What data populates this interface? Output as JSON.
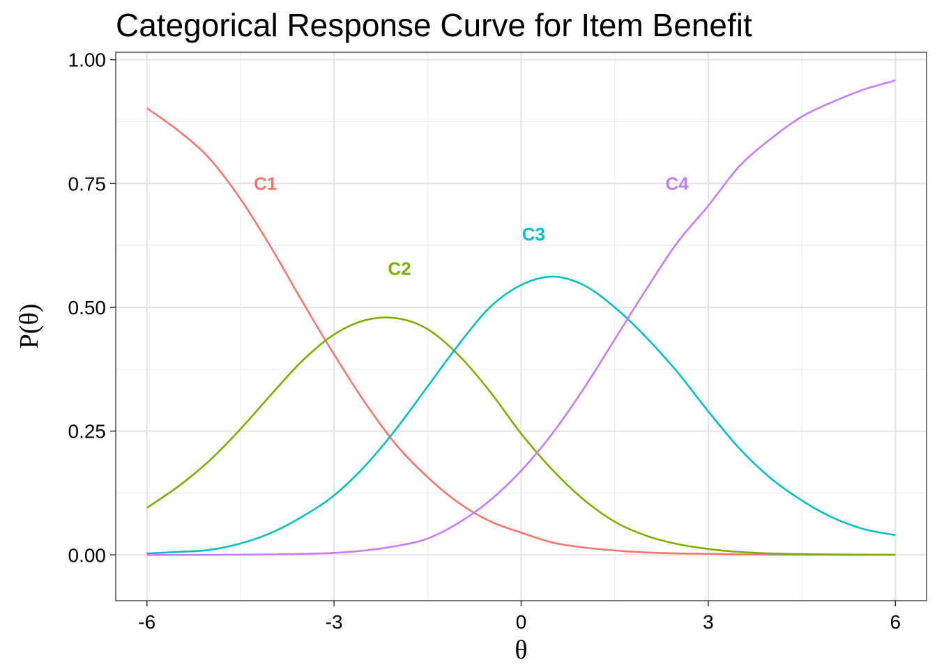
{
  "chart_data": {
    "type": "line",
    "title": "Categorical Response Curve for Item Benefit",
    "xlabel": "θ",
    "ylabel": "P(θ)",
    "xlim": [
      -6.5,
      6.5
    ],
    "ylim": [
      -0.0925,
      1.015
    ],
    "x_ticks": [
      -6,
      -3,
      0,
      3,
      6
    ],
    "x_tick_labels": [
      "-6",
      "-3",
      "0",
      "3",
      "6"
    ],
    "y_ticks": [
      0,
      0.25,
      0.5,
      0.75,
      1.0
    ],
    "y_tick_labels": [
      "0.00",
      "0.25",
      "0.50",
      "0.75",
      "1.00"
    ],
    "grid": true,
    "x": [
      -6,
      -5.5,
      -5,
      -4.5,
      -4,
      -3.5,
      -3,
      -2.5,
      -2,
      -1.5,
      -1,
      -0.5,
      0,
      0.5,
      1,
      1.5,
      2,
      2.5,
      3,
      3.5,
      4,
      4.5,
      5,
      5.5,
      6
    ],
    "series": [
      {
        "name": "C1",
        "color": "#F8766D",
        "values": [
          0.902,
          0.857,
          0.801,
          0.719,
          0.619,
          0.51,
          0.405,
          0.307,
          0.222,
          0.157,
          0.105,
          0.068,
          0.045,
          0.025,
          0.015,
          0.009,
          0.005,
          0.003,
          0.002,
          0.001,
          0.0006,
          0.0003,
          0.0002,
          0.0001,
          0.0001
        ],
        "label": {
          "text": "C1",
          "x": -4.1,
          "y": 0.75
        }
      },
      {
        "name": "C2",
        "color": "#7CAE00",
        "values": [
          0.095,
          0.138,
          0.19,
          0.254,
          0.325,
          0.393,
          0.445,
          0.474,
          0.478,
          0.456,
          0.403,
          0.33,
          0.245,
          0.172,
          0.112,
          0.067,
          0.039,
          0.022,
          0.012,
          0.006,
          0.003,
          0.0015,
          0.0008,
          0.0004,
          0.0002
        ],
        "label": {
          "text": "C2",
          "x": -1.95,
          "y": 0.578
        }
      },
      {
        "name": "C3",
        "color": "#00BFC4",
        "values": [
          0.003,
          0.006,
          0.01,
          0.023,
          0.045,
          0.078,
          0.12,
          0.18,
          0.255,
          0.34,
          0.425,
          0.5,
          0.545,
          0.562,
          0.545,
          0.5,
          0.44,
          0.37,
          0.29,
          0.215,
          0.155,
          0.11,
          0.075,
          0.052,
          0.04
        ],
        "label": {
          "text": "C3",
          "x": 0.2,
          "y": 0.648
        }
      },
      {
        "name": "C4",
        "color": "#C77CFF",
        "values": [
          0.0,
          0.0,
          0.0001,
          0.0004,
          0.0009,
          0.002,
          0.004,
          0.009,
          0.018,
          0.033,
          0.065,
          0.11,
          0.17,
          0.245,
          0.335,
          0.435,
          0.535,
          0.63,
          0.705,
          0.785,
          0.84,
          0.885,
          0.915,
          0.94,
          0.958
        ],
        "label": {
          "text": "C4",
          "x": 2.5,
          "y": 0.75
        }
      }
    ]
  }
}
